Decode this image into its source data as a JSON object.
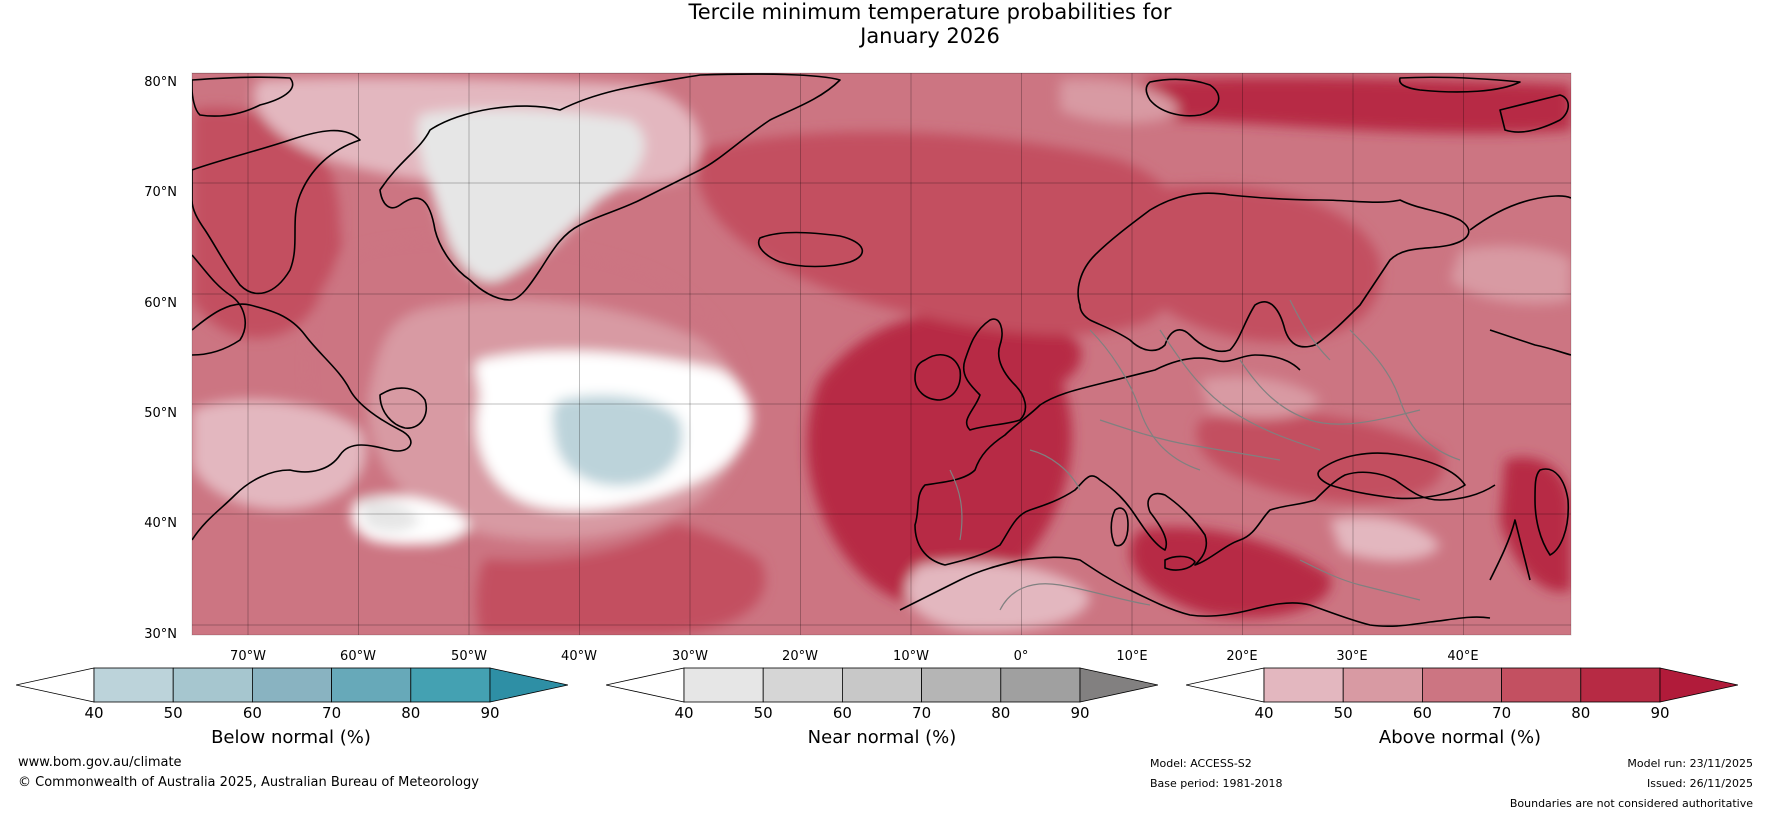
{
  "title": {
    "line1": "Tercile minimum temperature probabilities for",
    "line2": "January 2026"
  },
  "map": {
    "lat_labels": [
      "80°N",
      "70°N",
      "60°N",
      "50°N",
      "40°N",
      "30°N"
    ],
    "lon_labels": [
      "70°W",
      "60°W",
      "50°W",
      "40°W",
      "30°W",
      "20°W",
      "10°W",
      "0°",
      "10°E",
      "20°E",
      "30°E",
      "40°E"
    ],
    "colors": {
      "ocean_base": "#d67f8c",
      "above_40": "#e3b7bf",
      "above_50": "#d89aa3",
      "above_60": "#cc7582",
      "above_70": "#c35061",
      "above_80": "#b72a44",
      "near_40": "#e6e6e6",
      "below_40": "#bcd3da",
      "coast": "#000000",
      "border": "#808080"
    }
  },
  "colorbars": [
    {
      "label": "Below normal (%)",
      "ticks": [
        "40",
        "50",
        "60",
        "70",
        "80",
        "90"
      ],
      "low_color": "#ffffff",
      "colors": [
        "#bcd3da",
        "#a6c6cf",
        "#89b3c1",
        "#67a9b9",
        "#44a1b2"
      ],
      "high_color": "#2e8fa5"
    },
    {
      "label": "Near normal (%)",
      "ticks": [
        "40",
        "50",
        "60",
        "70",
        "80",
        "90"
      ],
      "low_color": "#ffffff",
      "colors": [
        "#e6e6e6",
        "#d6d6d6",
        "#c8c8c8",
        "#b5b5b5",
        "#a0a0a0"
      ],
      "high_color": "#828080"
    },
    {
      "label": "Above normal (%)",
      "ticks": [
        "40",
        "50",
        "60",
        "70",
        "80",
        "90"
      ],
      "low_color": "#ffffff",
      "colors": [
        "#e3b7bf",
        "#d89aa3",
        "#cc7582",
        "#c35061",
        "#b72a44"
      ],
      "high_color": "#b11b3a"
    }
  ],
  "footer": {
    "website": "www.bom.gov.au/climate",
    "copyright": "© Commonwealth of Australia 2025, Australian Bureau of Meteorology",
    "model": "Model: ACCESS-S2",
    "base_period": "Base period: 1981-2018",
    "model_run": "Model run: 23/11/2025",
    "issued": "Issued: 26/11/2025",
    "disclaimer": "Boundaries are not considered authoritative"
  }
}
